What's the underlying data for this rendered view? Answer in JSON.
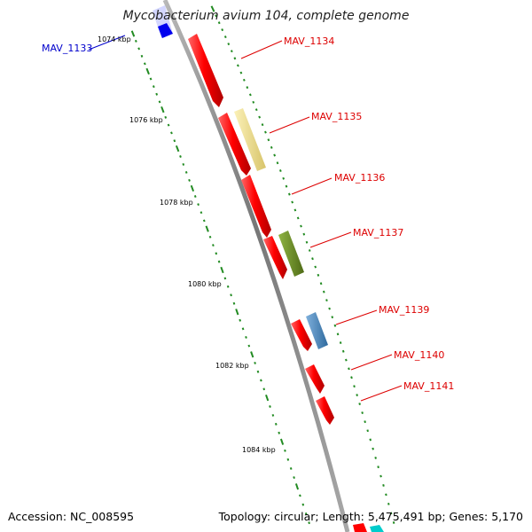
{
  "title": "Mycobacterium avium 104, complete genome",
  "footer": {
    "accession": "Accession: NC_008595",
    "summary": "Topology: circular; Length: 5,475,491 bp; Genes: 5,170"
  },
  "colors": {
    "backbone": "#8a8a8a",
    "tick": "#228b22",
    "forward_gene": "#ff0000",
    "reverse_gene": "#0000ff",
    "forward_label": "#dd0000",
    "reverse_label": "#0000cc"
  },
  "scale": {
    "unit": "kbp",
    "ticks": [
      {
        "label": "1074 kbp"
      },
      {
        "label": "1076 kbp"
      },
      {
        "label": "1078 kbp"
      },
      {
        "label": "1080 kbp"
      },
      {
        "label": "1082 kbp"
      },
      {
        "label": "1084 kbp"
      }
    ]
  },
  "genes": [
    {
      "label": "MAV_1133",
      "strand": "reverse"
    },
    {
      "label": "MAV_1134",
      "strand": "forward"
    },
    {
      "label": "MAV_1135",
      "strand": "forward"
    },
    {
      "label": "MAV_1136",
      "strand": "forward"
    },
    {
      "label": "MAV_1137",
      "strand": "forward"
    },
    {
      "label": "MAV_1139",
      "strand": "forward"
    },
    {
      "label": "MAV_1140",
      "strand": "forward"
    },
    {
      "label": "MAV_1141",
      "strand": "forward"
    }
  ],
  "features": [
    {
      "color": "#f2e28c"
    },
    {
      "color": "#6b8e23"
    },
    {
      "color": "#4682b4"
    }
  ]
}
